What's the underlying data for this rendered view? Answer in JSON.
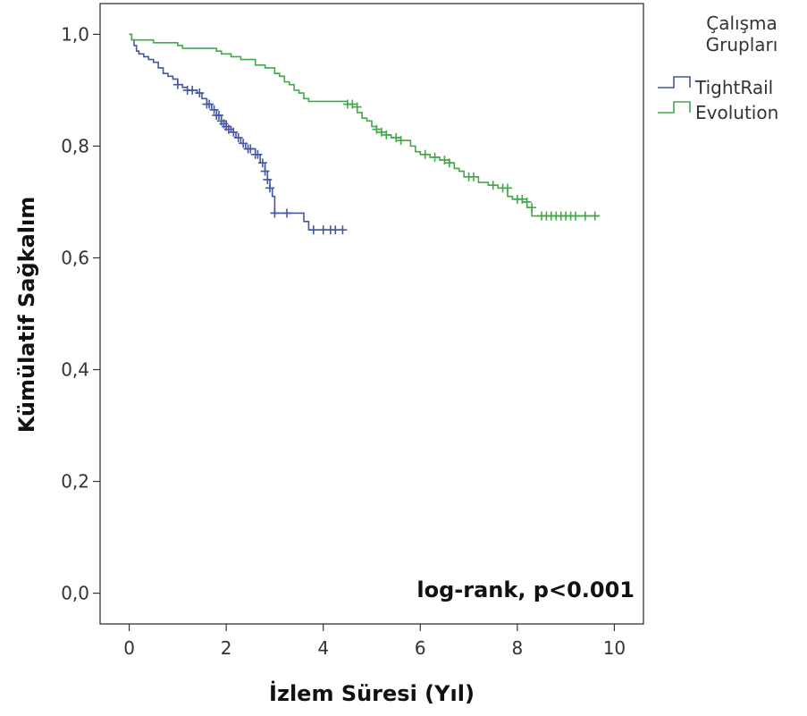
{
  "chart_data": {
    "type": "line",
    "xlabel": "İzlem Süresi (Yıl)",
    "ylabel": "Kümülatif Sağkalım",
    "xlim": [
      -0.6,
      10.6
    ],
    "ylim": [
      -0.055,
      1.055
    ],
    "x_ticks": [
      0,
      2,
      4,
      6,
      8,
      10
    ],
    "x_tick_labels": [
      "0",
      "2",
      "4",
      "6",
      "8",
      "10"
    ],
    "y_ticks": [
      0.0,
      0.2,
      0.4,
      0.6,
      0.8,
      1.0
    ],
    "y_tick_labels": [
      "0,0",
      "0,2",
      "0,4",
      "0,6",
      "0,8",
      "1,0"
    ],
    "legend_title": "Çalışma Grupları",
    "legend_position": "outside-right",
    "annotation": "log-rank, p<0.001",
    "series": [
      {
        "name": "TightRail",
        "color": "#4557a0",
        "steps": [
          [
            0,
            1.0
          ],
          [
            0.05,
            0.99
          ],
          [
            0.1,
            0.98
          ],
          [
            0.15,
            0.97
          ],
          [
            0.2,
            0.965
          ],
          [
            0.3,
            0.96
          ],
          [
            0.4,
            0.955
          ],
          [
            0.5,
            0.95
          ],
          [
            0.6,
            0.94
          ],
          [
            0.7,
            0.93
          ],
          [
            0.8,
            0.925
          ],
          [
            0.9,
            0.92
          ],
          [
            1.0,
            0.91
          ],
          [
            1.1,
            0.905
          ],
          [
            1.2,
            0.9
          ],
          [
            1.4,
            0.895
          ],
          [
            1.5,
            0.885
          ],
          [
            1.6,
            0.875
          ],
          [
            1.7,
            0.865
          ],
          [
            1.8,
            0.855
          ],
          [
            1.9,
            0.845
          ],
          [
            2.0,
            0.835
          ],
          [
            2.1,
            0.825
          ],
          [
            2.2,
            0.815
          ],
          [
            2.3,
            0.805
          ],
          [
            2.4,
            0.795
          ],
          [
            2.6,
            0.785
          ],
          [
            2.7,
            0.77
          ],
          [
            2.8,
            0.755
          ],
          [
            2.85,
            0.74
          ],
          [
            2.9,
            0.725
          ],
          [
            2.95,
            0.71
          ],
          [
            3.0,
            0.68
          ],
          [
            3.6,
            0.665
          ],
          [
            3.7,
            0.65
          ],
          [
            4.4,
            0.65
          ]
        ],
        "censored": [
          [
            1.0,
            0.91
          ],
          [
            1.2,
            0.9
          ],
          [
            1.3,
            0.9
          ],
          [
            1.45,
            0.895
          ],
          [
            1.6,
            0.875
          ],
          [
            1.65,
            0.875
          ],
          [
            1.75,
            0.865
          ],
          [
            1.8,
            0.855
          ],
          [
            1.85,
            0.855
          ],
          [
            1.9,
            0.845
          ],
          [
            1.95,
            0.84
          ],
          [
            2.0,
            0.835
          ],
          [
            2.05,
            0.83
          ],
          [
            2.15,
            0.825
          ],
          [
            2.25,
            0.815
          ],
          [
            2.35,
            0.805
          ],
          [
            2.45,
            0.795
          ],
          [
            2.5,
            0.795
          ],
          [
            2.6,
            0.785
          ],
          [
            2.65,
            0.785
          ],
          [
            2.75,
            0.77
          ],
          [
            2.8,
            0.755
          ],
          [
            2.85,
            0.74
          ],
          [
            2.9,
            0.725
          ],
          [
            3.0,
            0.68
          ],
          [
            3.25,
            0.68
          ],
          [
            3.8,
            0.65
          ],
          [
            4.0,
            0.65
          ],
          [
            4.15,
            0.65
          ],
          [
            4.25,
            0.65
          ],
          [
            4.4,
            0.65
          ]
        ]
      },
      {
        "name": "Evolution",
        "color": "#43a84a",
        "steps": [
          [
            0,
            1.0
          ],
          [
            0.05,
            0.99
          ],
          [
            0.5,
            0.985
          ],
          [
            1.0,
            0.98
          ],
          [
            1.1,
            0.975
          ],
          [
            1.8,
            0.97
          ],
          [
            1.9,
            0.965
          ],
          [
            2.1,
            0.96
          ],
          [
            2.3,
            0.955
          ],
          [
            2.6,
            0.945
          ],
          [
            2.8,
            0.94
          ],
          [
            3.0,
            0.93
          ],
          [
            3.1,
            0.925
          ],
          [
            3.2,
            0.915
          ],
          [
            3.3,
            0.91
          ],
          [
            3.4,
            0.9
          ],
          [
            3.5,
            0.895
          ],
          [
            3.6,
            0.885
          ],
          [
            3.7,
            0.88
          ],
          [
            4.5,
            0.875
          ],
          [
            4.6,
            0.87
          ],
          [
            4.7,
            0.86
          ],
          [
            4.8,
            0.85
          ],
          [
            4.9,
            0.845
          ],
          [
            5.0,
            0.835
          ],
          [
            5.1,
            0.83
          ],
          [
            5.2,
            0.825
          ],
          [
            5.3,
            0.82
          ],
          [
            5.4,
            0.815
          ],
          [
            5.6,
            0.81
          ],
          [
            5.8,
            0.8
          ],
          [
            5.9,
            0.79
          ],
          [
            6.0,
            0.785
          ],
          [
            6.2,
            0.78
          ],
          [
            6.4,
            0.775
          ],
          [
            6.6,
            0.77
          ],
          [
            6.7,
            0.76
          ],
          [
            6.8,
            0.755
          ],
          [
            6.9,
            0.745
          ],
          [
            7.2,
            0.735
          ],
          [
            7.4,
            0.73
          ],
          [
            7.6,
            0.725
          ],
          [
            7.8,
            0.71
          ],
          [
            7.9,
            0.705
          ],
          [
            8.1,
            0.7
          ],
          [
            8.2,
            0.69
          ],
          [
            8.3,
            0.675
          ],
          [
            9.7,
            0.675
          ]
        ],
        "censored": [
          [
            4.5,
            0.875
          ],
          [
            4.6,
            0.875
          ],
          [
            4.7,
            0.87
          ],
          [
            5.1,
            0.83
          ],
          [
            5.2,
            0.825
          ],
          [
            5.3,
            0.82
          ],
          [
            5.5,
            0.815
          ],
          [
            5.6,
            0.81
          ],
          [
            6.1,
            0.785
          ],
          [
            6.3,
            0.78
          ],
          [
            6.5,
            0.775
          ],
          [
            6.6,
            0.77
          ],
          [
            7.0,
            0.745
          ],
          [
            7.1,
            0.745
          ],
          [
            7.5,
            0.73
          ],
          [
            7.7,
            0.725
          ],
          [
            7.8,
            0.725
          ],
          [
            8.0,
            0.705
          ],
          [
            8.1,
            0.705
          ],
          [
            8.2,
            0.7
          ],
          [
            8.3,
            0.69
          ],
          [
            8.5,
            0.675
          ],
          [
            8.6,
            0.675
          ],
          [
            8.7,
            0.675
          ],
          [
            8.8,
            0.675
          ],
          [
            8.9,
            0.675
          ],
          [
            9.0,
            0.675
          ],
          [
            9.1,
            0.675
          ],
          [
            9.2,
            0.675
          ],
          [
            9.4,
            0.675
          ],
          [
            9.6,
            0.675
          ]
        ]
      }
    ]
  }
}
